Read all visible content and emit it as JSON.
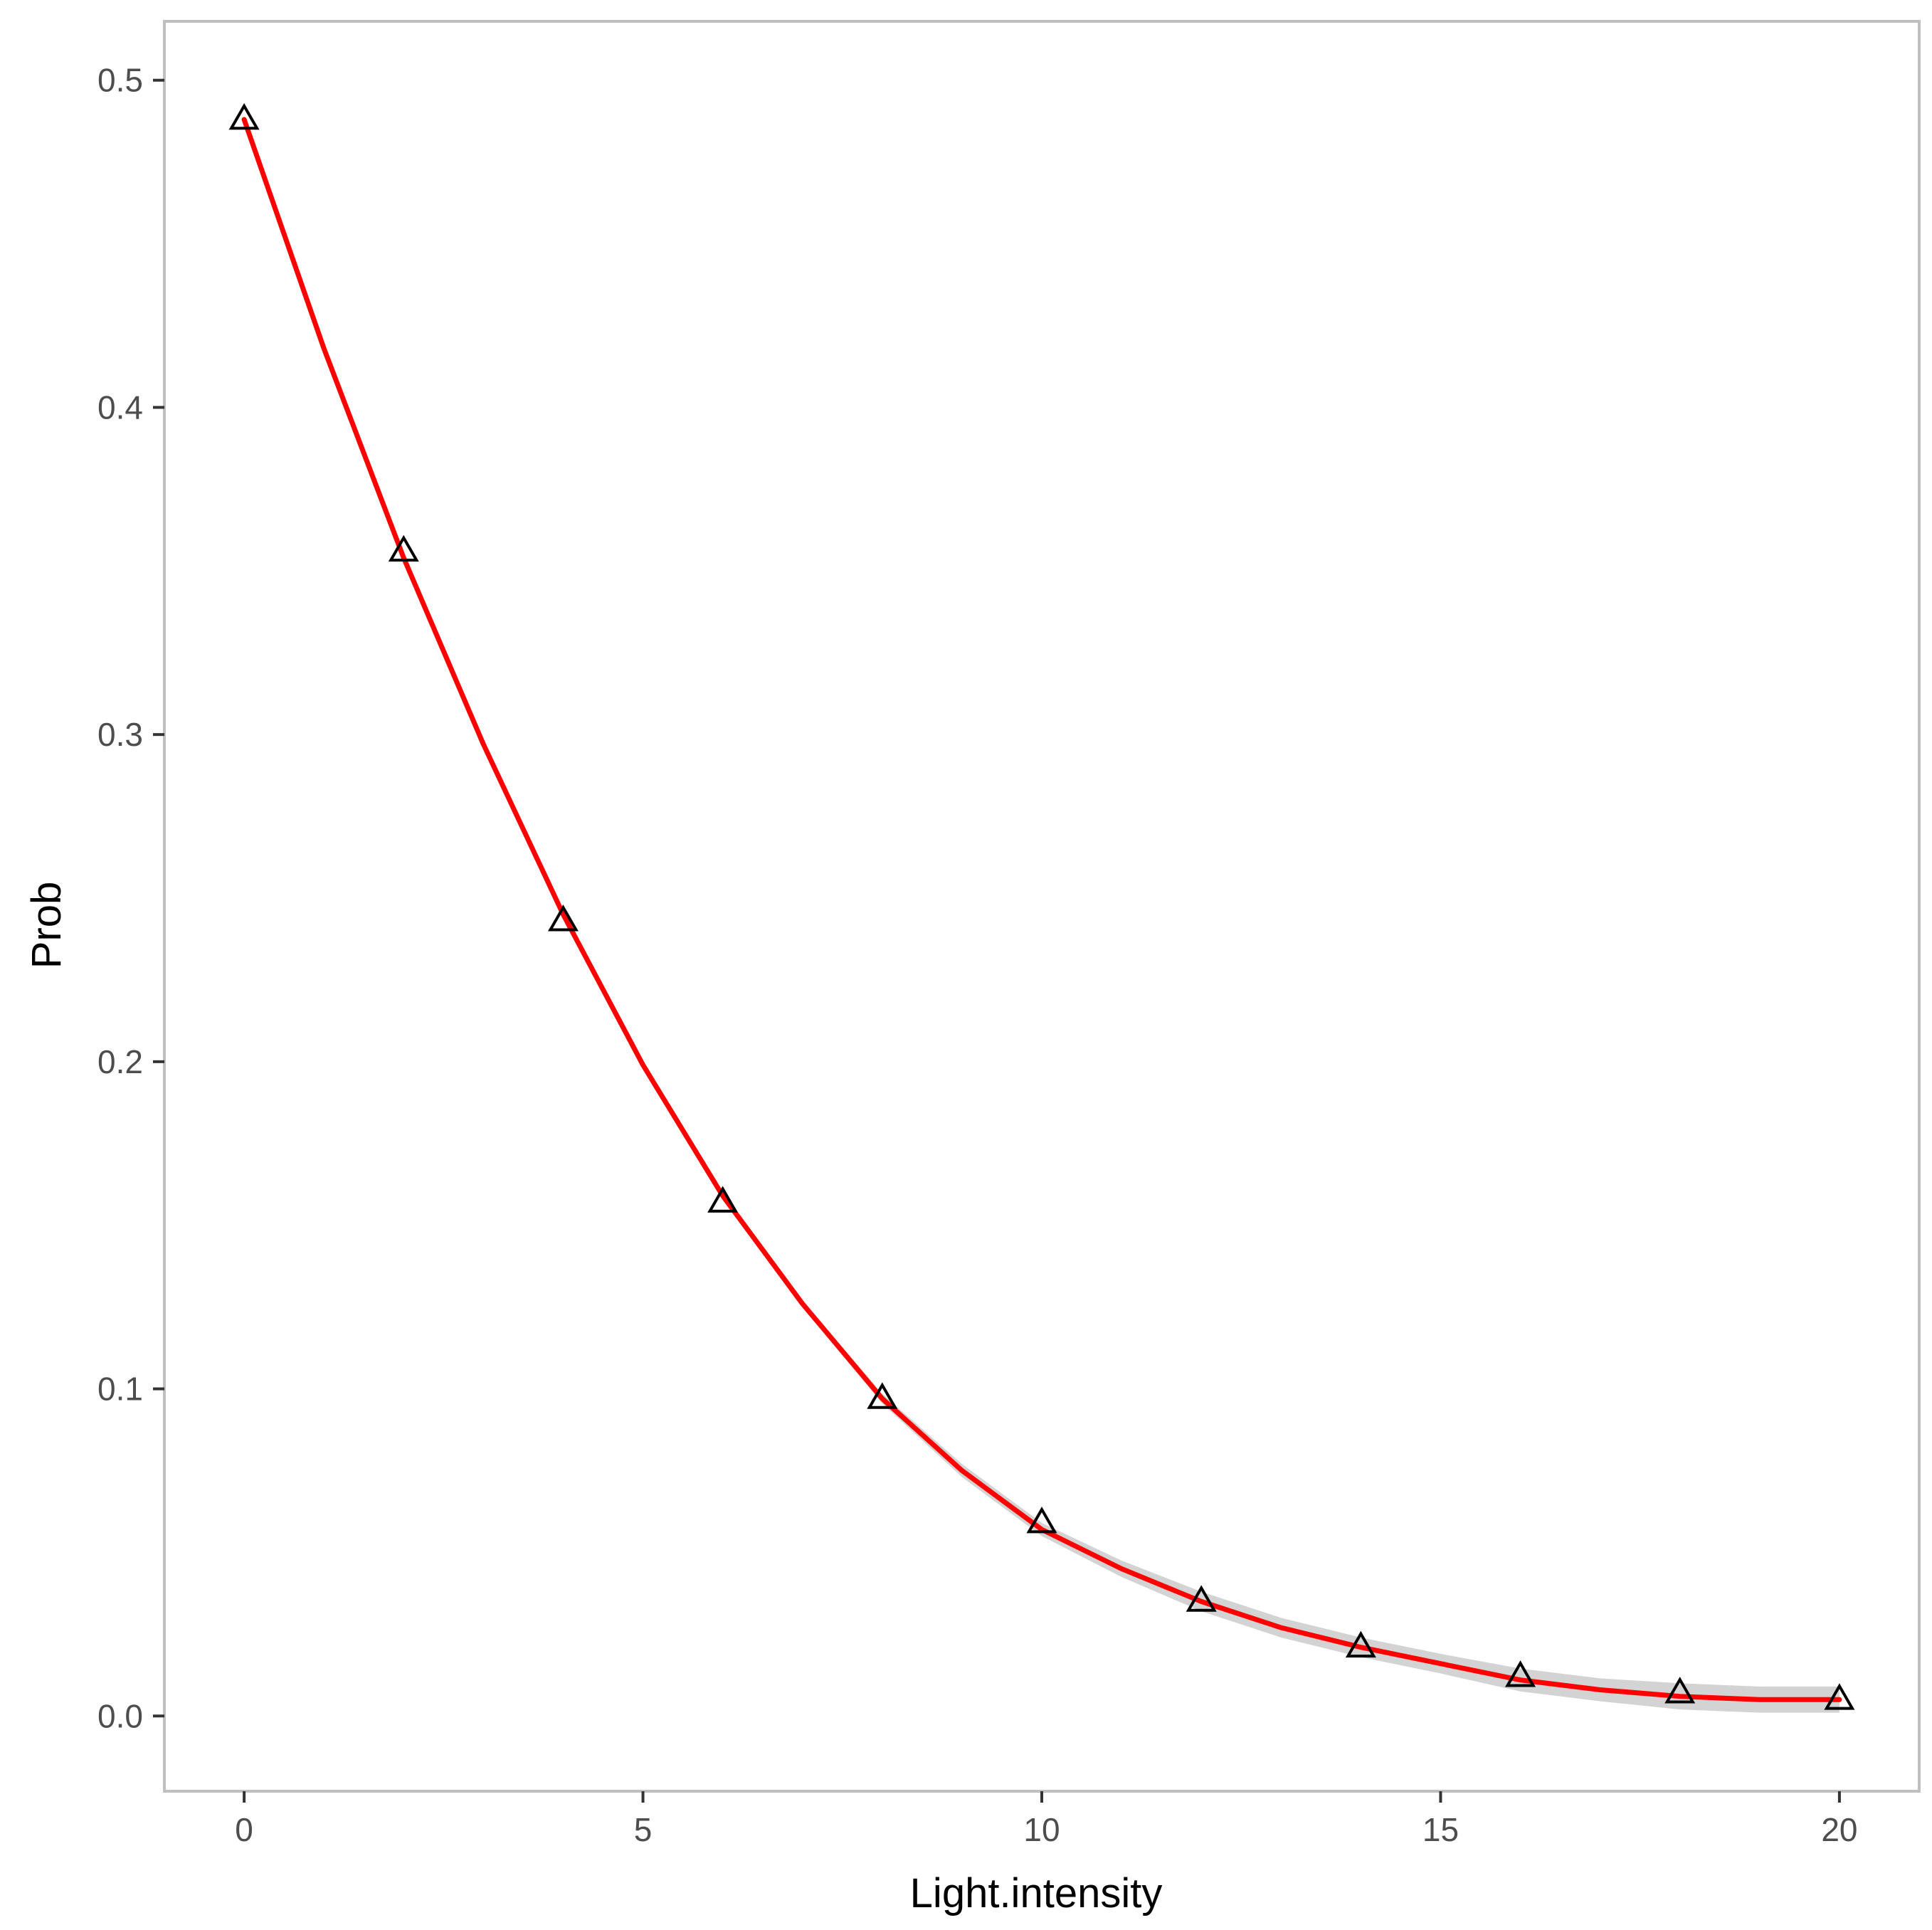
{
  "chart_data": {
    "type": "line",
    "title": "",
    "xlabel": "Light.intensity",
    "ylabel": "Prob",
    "xlim": [
      -1,
      21
    ],
    "ylim": [
      -0.023,
      0.518
    ],
    "grid": false,
    "legend": "none",
    "x_ticks": [
      0,
      5,
      10,
      15,
      20
    ],
    "x_tick_labels": [
      "0",
      "5",
      "10",
      "15",
      "20"
    ],
    "y_ticks": [
      0.0,
      0.1,
      0.2,
      0.3,
      0.4,
      0.5
    ],
    "y_tick_labels": [
      "0.0",
      "0.1",
      "0.2",
      "0.3",
      "0.4",
      "0.5"
    ],
    "points": {
      "marker": "open-triangle",
      "color": "#000000",
      "x": [
        0,
        2,
        4,
        6,
        8,
        10,
        12,
        14,
        16,
        18,
        20
      ],
      "y": [
        0.488,
        0.356,
        0.243,
        0.157,
        0.097,
        0.059,
        0.035,
        0.021,
        0.012,
        0.007,
        0.005
      ]
    },
    "fit": {
      "color": "#ff0000",
      "band_color": "#d3d3d3",
      "x": [
        0,
        1,
        2,
        3,
        4,
        5,
        6,
        7,
        8,
        9,
        10,
        11,
        12,
        13,
        14,
        15,
        16,
        17,
        18,
        19,
        20
      ],
      "y": [
        0.488,
        0.418,
        0.354,
        0.297,
        0.245,
        0.199,
        0.159,
        0.126,
        0.097,
        0.075,
        0.057,
        0.045,
        0.035,
        0.027,
        0.021,
        0.016,
        0.011,
        0.008,
        0.006,
        0.005,
        0.005
      ],
      "band_halfwidth": [
        0.0,
        0.0,
        0.0,
        0.0,
        0.0,
        0.0,
        0.001,
        0.001,
        0.0015,
        0.002,
        0.002,
        0.0025,
        0.003,
        0.003,
        0.003,
        0.003,
        0.0035,
        0.0035,
        0.004,
        0.004,
        0.004
      ]
    },
    "panel_border_color": "#bfbfbf"
  }
}
